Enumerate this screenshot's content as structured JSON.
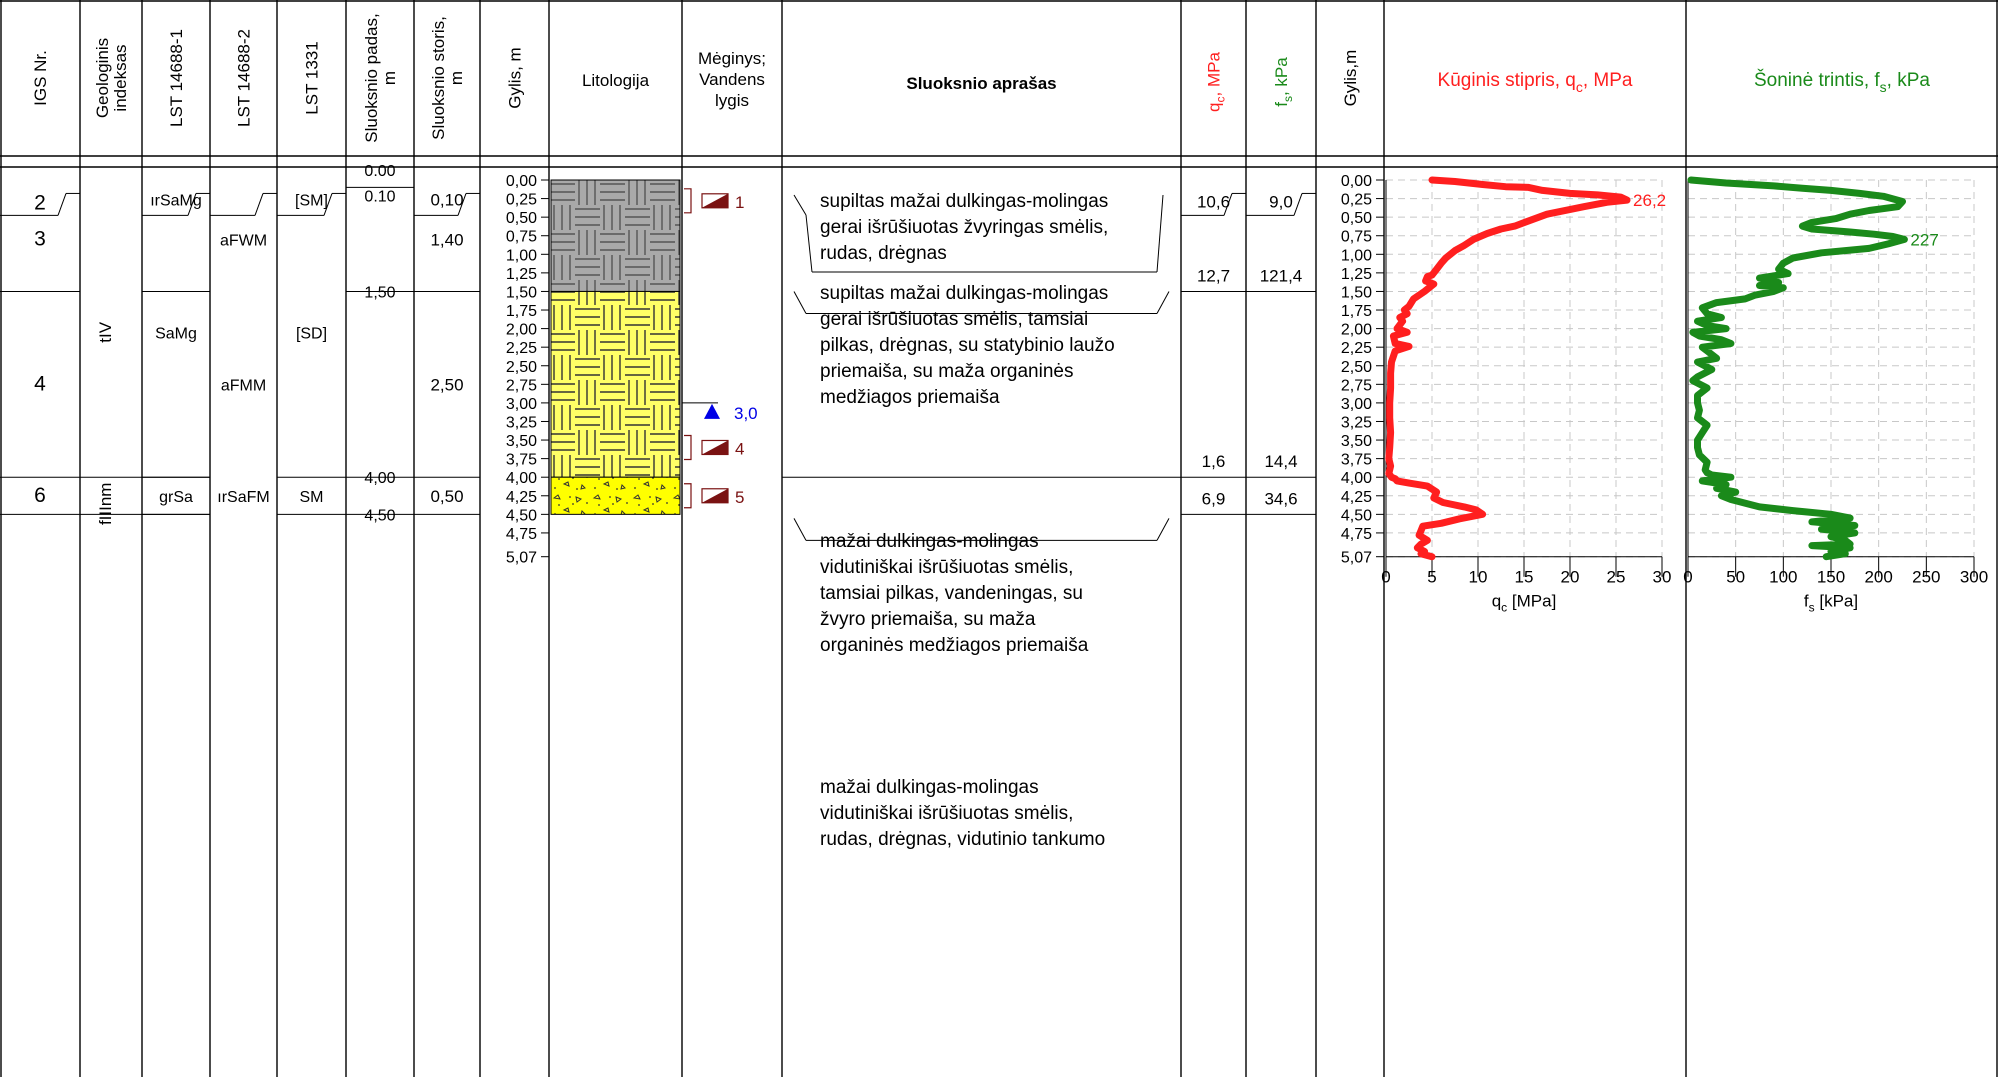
{
  "header": {
    "igs_nr": "IGS Nr.",
    "geo_index": [
      "Geologinis",
      "indeksas"
    ],
    "lst_14688_1": "LST 14688-1",
    "lst_14688_2": "LST 14688-2",
    "lst_1331": "LST 1331",
    "layer_bottom": [
      "Sluoksnio padas,",
      "m"
    ],
    "layer_thickness": [
      "Sluoksnio storis,",
      "m"
    ],
    "depth": "Gylis, m",
    "lithology": "Litologija",
    "sample": [
      "Mėginys;",
      "Vandens",
      "lygis"
    ],
    "description": "Sluoksnio aprašas",
    "qc_col": {
      "main": "q",
      "sub": "c",
      "rest": ", MPa"
    },
    "fs_col": {
      "main": "f",
      "sub": "s",
      "rest": ", kPa"
    },
    "depth2": "Gylis,m",
    "qc_chart": {
      "main": "Kūginis stipris, q",
      "sub": "c",
      "rest": ", MPa"
    },
    "fs_chart": {
      "main": "Šoninė trintis, f",
      "sub": "s",
      "rest": ", kPa"
    }
  },
  "colors": {
    "qc_line": "#ff1f1f",
    "fs_line": "#1a8a1a",
    "sample_marker": "#7a1212",
    "water_marker": "#0000e6",
    "gravelly_sand_fill": "#a9a9a9",
    "sand_fill": "#ffff66",
    "fill_soil": "#ffff00"
  },
  "layers": [
    {
      "igs": "2",
      "geo_index": "",
      "lst1": "ırSaMg",
      "lst2": "",
      "lst1331": "[SM]",
      "bottom": 0.1,
      "bottom_label": "0.10",
      "top_label": "0.00",
      "thickness": "0,10",
      "qc": "10,6",
      "fs": "9,0",
      "description": [
        "supiltas mažai dulkingas-molingas",
        "gerai išrūšiuotas žvyringas smėlis,",
        "rudas, drėgnas"
      ]
    },
    {
      "igs": "3",
      "geo_index": "",
      "lst1": "",
      "lst2": "aFWM",
      "lst1331": "",
      "bottom": 1.5,
      "bottom_label": "1,50",
      "thickness": "1,40",
      "qc": "12,7",
      "fs": "121,4",
      "description": [
        "supiltas mažai dulkingas-molingas",
        "gerai išrūšiuotas smėlis, tamsiai",
        "pilkas, drėgnas, su statybinio laužo",
        "priemaiša, su maža organinės",
        "medžiagos priemaiša"
      ]
    },
    {
      "igs": "4",
      "geo_index": "",
      "lst1": "",
      "lst2": "aFMM",
      "lst1331": "",
      "bottom": 4.0,
      "bottom_label": "4,00",
      "thickness": "2,50",
      "qc": "1,6",
      "fs": "14,4",
      "description": [
        "mažai dulkingas-molingas",
        "vidutiniškai išrūšiuotas smėlis,",
        "tamsiai pilkas, vandeningas, su",
        "žvyro priemaiša, su maža",
        "organinės medžiagos priemaiša"
      ]
    },
    {
      "igs": "6",
      "geo_index": "fIIInm",
      "lst1": "grSa",
      "lst2": "ırSaFM",
      "lst1331": "SM",
      "bottom": 4.5,
      "bottom_label": "4,50",
      "thickness": "0,50",
      "qc": "6,9",
      "fs": "34,6",
      "description": [
        "mažai dulkingas-molingas",
        "vidutiniškai išrūšiuotas smėlis,",
        "rudas, drėgnas, vidutinio tankumo"
      ]
    }
  ],
  "merged_labels": {
    "geo_index_tIV": "tIV",
    "lst1_SaMg": "SaMg",
    "lst1331_SD": "[SD]"
  },
  "depth_ticks": [
    "0,00",
    "0,25",
    "0,50",
    "0,75",
    "1,00",
    "1,25",
    "1,50",
    "1,75",
    "2,00",
    "2,25",
    "2,50",
    "2,75",
    "3,00",
    "3,25",
    "3,50",
    "3,75",
    "4,00",
    "4,25",
    "4,50",
    "4,75",
    "5,07"
  ],
  "samples": [
    {
      "label": "1",
      "depth": 0.28
    },
    {
      "label": "4",
      "depth": 3.6
    },
    {
      "label": "5",
      "depth": 4.25
    }
  ],
  "water_level": {
    "label": "3,0",
    "depth": 3.0
  },
  "chart_data": [
    {
      "type": "line",
      "title": "Kūginis stipris, qc, MPa",
      "xlabel": "qc [MPa]",
      "ylabel": "Gylis,m",
      "xlim": [
        0,
        30
      ],
      "ylim": [
        5.07,
        0
      ],
      "x_ticks": [
        "0",
        "5",
        "10",
        "15",
        "20",
        "25",
        "30"
      ],
      "grid": true,
      "annotation": {
        "text": "26,2",
        "x": 26.2,
        "y": 0.27
      },
      "series": [
        {
          "x": [
            5.0,
            7.5,
            10.5,
            13.0,
            15.5,
            17.0,
            20.0,
            23.0,
            25.5,
            26.2,
            24.0,
            21.5,
            17.5,
            15.5,
            14.0,
            12.5,
            11.0,
            9.5,
            8.5,
            7.5,
            6.5,
            6.0,
            5.5,
            5.0,
            4.5,
            4.3,
            5.2,
            4.2,
            3.0,
            2.5,
            2.0,
            2.3,
            1.5,
            1.8,
            1.2,
            2.3,
            0.8,
            1.0,
            2.5,
            1.0,
            0.6,
            0.5,
            0.5,
            0.4,
            0.4,
            0.5,
            0.4,
            0.3,
            0.5,
            0.4,
            0.3,
            0.6,
            1.0,
            1.2,
            2.5,
            4.5,
            5.5,
            5.2,
            6.2,
            8.5,
            9.8,
            10.5,
            8.0,
            6.0,
            4.0,
            3.8,
            3.6,
            4.5,
            3.8,
            3.4,
            4.2,
            3.8,
            5.0
          ],
          "y": [
            0.0,
            0.02,
            0.06,
            0.09,
            0.1,
            0.14,
            0.18,
            0.2,
            0.23,
            0.27,
            0.3,
            0.36,
            0.46,
            0.55,
            0.62,
            0.66,
            0.72,
            0.8,
            0.88,
            0.95,
            1.05,
            1.12,
            1.2,
            1.28,
            1.3,
            1.36,
            1.4,
            1.5,
            1.6,
            1.7,
            1.75,
            1.8,
            1.85,
            1.9,
            2.0,
            2.05,
            2.1,
            2.2,
            2.24,
            2.3,
            2.45,
            2.6,
            2.8,
            3.0,
            3.2,
            3.4,
            3.6,
            3.75,
            3.85,
            3.9,
            3.95,
            4.0,
            4.02,
            4.05,
            4.08,
            4.12,
            4.2,
            4.28,
            4.34,
            4.4,
            4.44,
            4.5,
            4.56,
            4.62,
            4.66,
            4.72,
            4.78,
            4.85,
            4.9,
            4.95,
            5.0,
            5.03,
            5.07
          ]
        }
      ]
    },
    {
      "type": "line",
      "title": "Šoninė trintis, fs, kPa",
      "xlabel": "fs [kPa]",
      "ylabel": "Gylis,m",
      "xlim": [
        0,
        300
      ],
      "ylim": [
        5.07,
        0
      ],
      "x_ticks": [
        "0",
        "50",
        "100",
        "150",
        "200",
        "250",
        "300"
      ],
      "grid": true,
      "annotation": {
        "text": "227",
        "x": 227,
        "y": 0.8
      },
      "series": [
        {
          "x": [
            3,
            40,
            90,
            120,
            150,
            180,
            205,
            225,
            220,
            190,
            170,
            155,
            130,
            120,
            130,
            150,
            170,
            195,
            215,
            227,
            210,
            190,
            140,
            110,
            100,
            95,
            105,
            75,
            95,
            75,
            100,
            90,
            70,
            60,
            30,
            15,
            20,
            35,
            10,
            20,
            40,
            5,
            12,
            35,
            45,
            15,
            20,
            30,
            10,
            25,
            10,
            5,
            20,
            10,
            10,
            12,
            10,
            20,
            15,
            10,
            10,
            12,
            20,
            18,
            20,
            25,
            45,
            15,
            40,
            30,
            50,
            35,
            45,
            75,
            110,
            150,
            170,
            130,
            175,
            140,
            175,
            150,
            165,
            170,
            130,
            170,
            150,
            165,
            145
          ],
          "y": [
            0.0,
            0.04,
            0.08,
            0.11,
            0.14,
            0.18,
            0.22,
            0.29,
            0.36,
            0.41,
            0.46,
            0.52,
            0.57,
            0.62,
            0.66,
            0.68,
            0.7,
            0.73,
            0.76,
            0.8,
            0.86,
            0.92,
            0.98,
            1.05,
            1.12,
            1.2,
            1.26,
            1.32,
            1.38,
            1.42,
            1.45,
            1.5,
            1.55,
            1.6,
            1.65,
            1.72,
            1.8,
            1.85,
            1.9,
            1.96,
            2.0,
            2.05,
            2.1,
            2.15,
            2.2,
            2.25,
            2.3,
            2.4,
            2.45,
            2.55,
            2.65,
            2.7,
            2.8,
            2.9,
            3.0,
            3.1,
            3.2,
            3.3,
            3.4,
            3.5,
            3.6,
            3.7,
            3.8,
            3.9,
            3.94,
            3.97,
            4.0,
            4.05,
            4.1,
            4.15,
            4.2,
            4.25,
            4.3,
            4.4,
            4.45,
            4.5,
            4.55,
            4.6,
            4.65,
            4.7,
            4.75,
            4.8,
            4.85,
            4.9,
            4.92,
            4.95,
            5.0,
            5.03,
            5.07
          ]
        }
      ]
    }
  ]
}
